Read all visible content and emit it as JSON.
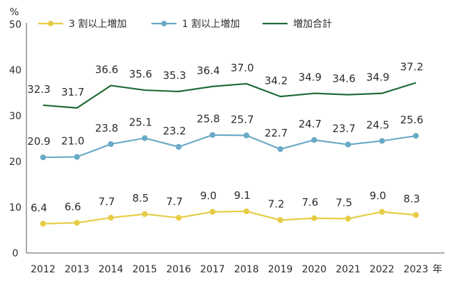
{
  "chart_data": {
    "type": "line",
    "title": "",
    "xlabel": "",
    "ylabel": "%",
    "unit_suffix": "年",
    "ylim": [
      0,
      50
    ],
    "yticks": [
      "0",
      "10",
      "20",
      "30",
      "40",
      "50"
    ],
    "grid": false,
    "legend_position": "top-left",
    "categories": [
      "2012",
      "2013",
      "2014",
      "2015",
      "2016",
      "2017",
      "2018",
      "2019",
      "2020",
      "2021",
      "2022",
      "2023"
    ],
    "series": [
      {
        "name": "3 割以上増加",
        "color": "#e6cc45",
        "values": [
          6.4,
          6.6,
          7.7,
          8.5,
          7.7,
          9.0,
          9.1,
          7.2,
          7.6,
          7.5,
          9.0,
          8.3
        ],
        "labels": [
          "6.4",
          "6.6",
          "7.7",
          "8.5",
          "7.7",
          "9.0",
          "9.1",
          "7.2",
          "7.6",
          "7.5",
          "9.0",
          "8.3"
        ]
      },
      {
        "name": "1 割以上増加",
        "color": "#6aaac6",
        "values": [
          20.9,
          21.0,
          23.8,
          25.1,
          23.2,
          25.8,
          25.7,
          22.7,
          24.7,
          23.7,
          24.5,
          25.6
        ],
        "labels": [
          "20.9",
          "21.0",
          "23.8",
          "25.1",
          "23.2",
          "25.8",
          "25.7",
          "22.7",
          "24.7",
          "23.7",
          "24.5",
          "25.6"
        ]
      },
      {
        "name": "増加合計",
        "color": "#1e6b35",
        "values": [
          32.3,
          31.7,
          36.6,
          35.6,
          35.3,
          36.4,
          37.0,
          34.2,
          34.9,
          34.6,
          34.9,
          37.2
        ],
        "labels": [
          "32.3",
          "31.7",
          "36.6",
          "35.6",
          "35.3",
          "36.4",
          "37.0",
          "34.2",
          "34.9",
          "34.6",
          "34.9",
          "37.2"
        ]
      }
    ]
  }
}
